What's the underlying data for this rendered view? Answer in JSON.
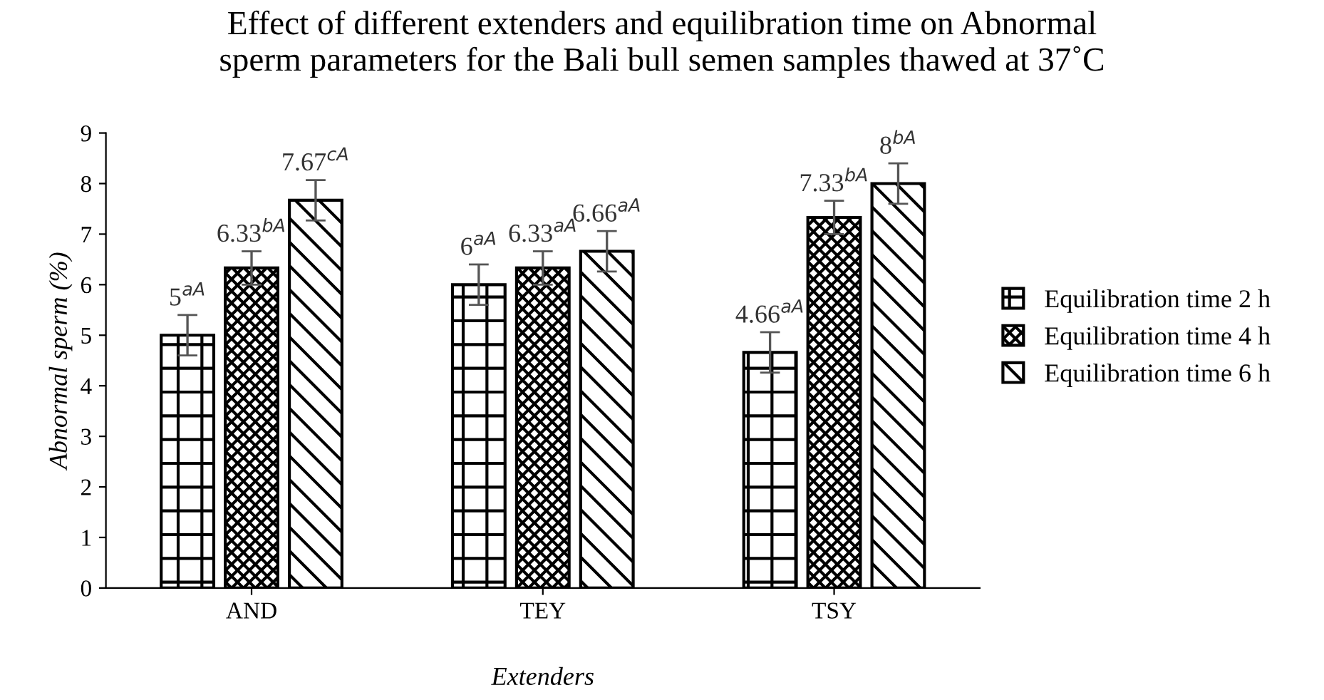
{
  "chart_data": {
    "type": "bar",
    "title": "Effect of different extenders and equilibration time on Abnormal\nsperm parameters for the Bali bull semen samples thawed at 37˚C",
    "xlabel": "Extenders",
    "ylabel": "Abnormal sperm (%)",
    "categories": [
      "AND",
      "TEY",
      "TSY"
    ],
    "series": [
      {
        "name": "Equilibration time 2 h",
        "color": "#000000",
        "values": [
          5,
          6,
          4.66
        ],
        "errors": [
          0.4,
          0.4,
          0.4
        ],
        "value_labels": [
          "5$^{aA}$",
          "6$^{aA}$",
          "4.66$^{aA}$"
        ]
      },
      {
        "name": "Equilibration time 4 h",
        "color": "#000000",
        "values": [
          6.33,
          6.33,
          7.33
        ],
        "errors": [
          0.33,
          0.33,
          0.33
        ],
        "value_labels": [
          "6.33$^{bA}$",
          "6.33$^{aA}$",
          "7.33$^{bA}$"
        ]
      },
      {
        "name": "Equilibration time 6 h",
        "color": "#000000",
        "values": [
          7.67,
          6.66,
          8
        ],
        "errors": [
          0.4,
          0.4,
          0.4
        ],
        "value_labels": [
          "7.67$^{cA}$",
          "6.66$^{aA}$",
          "8$^{bA}$"
        ]
      }
    ],
    "ylim": [
      0,
      9
    ],
    "yticks": [
      0,
      1,
      2,
      3,
      4,
      5,
      6,
      7,
      8,
      9
    ],
    "grid": false,
    "legend": "right"
  }
}
